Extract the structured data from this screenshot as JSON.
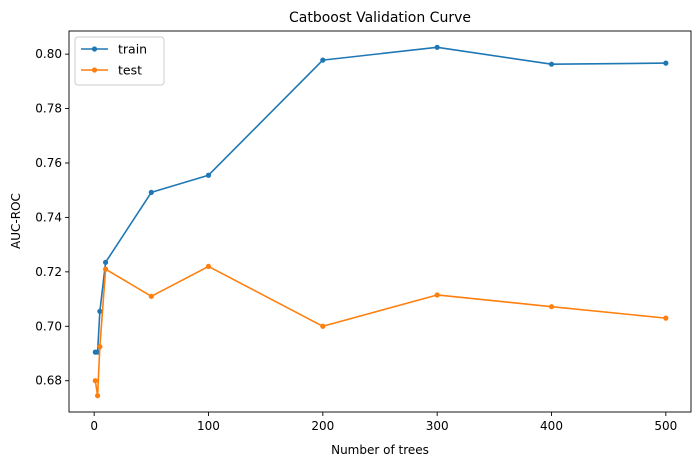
{
  "chart_data": {
    "type": "line",
    "title": "Catboost Validation Curve",
    "xlabel": "Number of trees",
    "ylabel": "AUC-ROC",
    "xlim": [
      -22,
      522
    ],
    "ylim": [
      0.6685,
      0.8085
    ],
    "xticks": [
      0,
      100,
      200,
      300,
      400,
      500
    ],
    "yticks": [
      0.68,
      0.7,
      0.72,
      0.74,
      0.76,
      0.78,
      0.8
    ],
    "ytick_labels": [
      "0.68",
      "0.70",
      "0.72",
      "0.74",
      "0.76",
      "0.78",
      "0.80"
    ],
    "legend_position": "top-left",
    "grid": false,
    "x": [
      1,
      3,
      5,
      10,
      50,
      100,
      200,
      300,
      400,
      500
    ],
    "series": [
      {
        "name": "train",
        "color": "#1f77b4",
        "values": [
          0.6905,
          0.6905,
          0.7055,
          0.7235,
          0.7492,
          0.7555,
          0.7978,
          0.8025,
          0.7963,
          0.7967
        ]
      },
      {
        "name": "test",
        "color": "#ff7f0e",
        "values": [
          0.68,
          0.6745,
          0.6925,
          0.721,
          0.711,
          0.722,
          0.7,
          0.7115,
          0.7072,
          0.703
        ]
      }
    ]
  }
}
